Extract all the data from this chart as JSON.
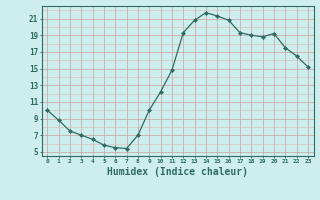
{
  "x": [
    0,
    1,
    2,
    3,
    4,
    5,
    6,
    7,
    8,
    9,
    10,
    11,
    12,
    13,
    14,
    15,
    16,
    17,
    18,
    19,
    20,
    21,
    22,
    23
  ],
  "y": [
    10.0,
    8.8,
    7.5,
    7.0,
    6.5,
    5.8,
    5.5,
    5.4,
    7.0,
    10.0,
    12.2,
    14.8,
    19.3,
    20.8,
    21.7,
    21.3,
    20.8,
    19.3,
    19.0,
    18.8,
    19.2,
    17.5,
    16.5,
    15.2
  ],
  "line_color": "#2e6b60",
  "marker": "D",
  "marker_size": 2.0,
  "bg_color": "#ceeeed",
  "grid_color_major": "#c9a0a0",
  "grid_color_minor": "#dbbaba",
  "xlabel": "Humidex (Indice chaleur)",
  "xlabel_fontsize": 7,
  "ylabel_ticks": [
    5,
    7,
    9,
    11,
    13,
    15,
    17,
    19,
    21
  ],
  "xlim": [
    -0.5,
    23.5
  ],
  "ylim": [
    4.5,
    22.5
  ],
  "xtick_labels": [
    "0",
    "1",
    "2",
    "3",
    "4",
    "5",
    "6",
    "7",
    "8",
    "9",
    "10",
    "11",
    "12",
    "13",
    "14",
    "15",
    "16",
    "17",
    "18",
    "19",
    "20",
    "21",
    "22",
    "23"
  ]
}
